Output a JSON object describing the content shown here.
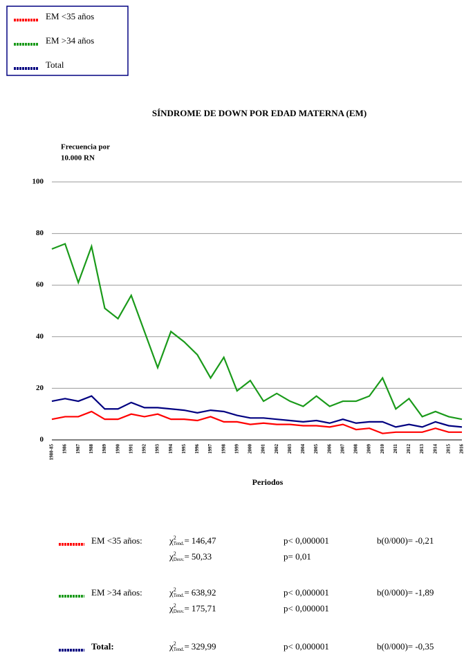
{
  "chart_data": {
    "type": "line",
    "title": "SÍNDROME DE DOWN POR EDAD MATERNA (EM)",
    "y_label": [
      "Frecuencia por",
      "10.000 RN"
    ],
    "x_label": "Periodos",
    "categories": [
      "1980-85",
      "1986",
      "1987",
      "1988",
      "1989",
      "1990",
      "1991",
      "1992",
      "1993",
      "1994",
      "1995",
      "1996",
      "1997",
      "1998",
      "1999",
      "2000",
      "2001",
      "2002",
      "2003",
      "2004",
      "2005",
      "2006",
      "2007",
      "2008",
      "2009",
      "2010",
      "2011",
      "2012",
      "2013",
      "2014",
      "2015",
      "2016"
    ],
    "series": [
      {
        "name": "EM <35 años",
        "color": "#ff0000",
        "values": [
          8,
          9,
          9,
          11,
          8,
          8,
          10,
          9,
          10,
          8,
          8,
          7.5,
          9,
          7,
          7,
          6,
          6.5,
          6,
          6,
          5.5,
          5.5,
          5,
          6,
          4,
          4.5,
          2.5,
          3,
          3,
          3,
          4.5,
          3,
          3
        ]
      },
      {
        "name": "EM >34 años",
        "color": "#1a9a1a",
        "values": [
          74,
          76,
          61,
          75,
          51,
          47,
          56,
          42,
          28,
          42,
          38,
          33,
          24,
          32,
          19,
          23,
          15,
          18,
          15,
          13,
          17,
          13,
          15,
          15,
          17,
          24,
          12,
          16,
          9,
          11,
          9,
          8
        ]
      },
      {
        "name": "Total",
        "color": "#000080",
        "values": [
          15,
          16,
          15,
          17,
          12,
          12,
          14.5,
          12.5,
          12.5,
          12,
          11.5,
          10.5,
          11.5,
          11,
          9.5,
          8.5,
          8.5,
          8,
          7.5,
          7,
          7.5,
          6.5,
          8,
          6.5,
          7,
          7,
          5,
          6,
          5,
          7,
          5.5,
          5
        ]
      }
    ],
    "ylim": [
      0,
      100
    ],
    "yticks": [
      0,
      20,
      40,
      60,
      80,
      100
    ],
    "grid": true,
    "legend": "top-left"
  },
  "stats": {
    "chi": "χ",
    "sup": "2",
    "tend_sub": "Tend.",
    "desv_sub": "Desv.",
    "eq": "=",
    "rows": [
      {
        "label": "EM <35 años:",
        "tend": "146,47",
        "p_tend": "p< 0,000001",
        "b": "b(0/000)= -0,21",
        "desv": "50,33",
        "p_desv": "p= 0,01"
      },
      {
        "label": "EM >34 años:",
        "tend": "638,92",
        "p_tend": "p< 0,000001",
        "b": "b(0/000)= -1,89",
        "desv": "175,71",
        "p_desv": "p< 0,000001"
      },
      {
        "label": "Total:",
        "tend": "329,99",
        "p_tend": "p< 0,000001",
        "b": "b(0/000)= -0,35"
      }
    ]
  }
}
